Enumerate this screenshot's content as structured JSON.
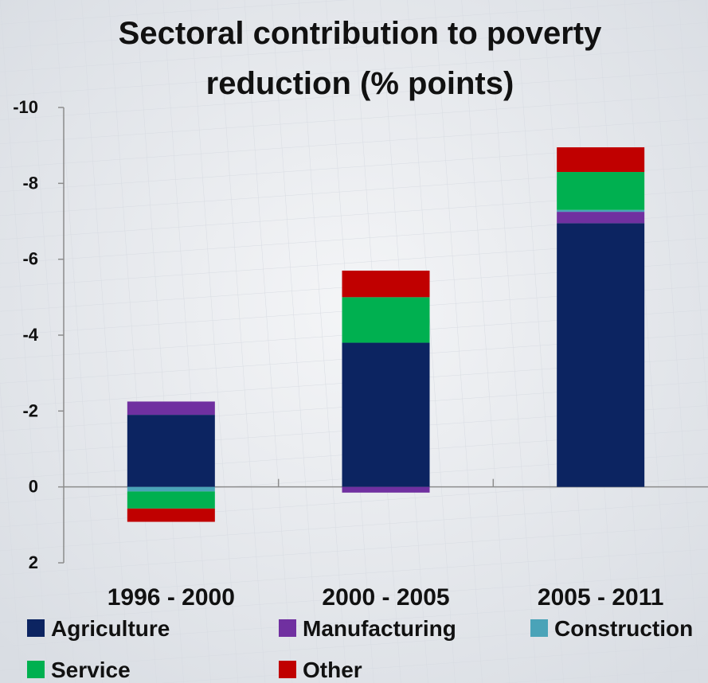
{
  "chart_data": {
    "type": "bar",
    "stacked": true,
    "title_lines": [
      "Sectoral contribution to poverty",
      "reduction (% points)"
    ],
    "categories": [
      "1996 - 2000",
      "2000 - 2005",
      "2005 - 2011"
    ],
    "series": [
      {
        "name": "Agriculture",
        "color": "#0c2461",
        "values": [
          -1.9,
          -3.8,
          -6.95
        ]
      },
      {
        "name": "Manufacturing",
        "color": "#7030a0",
        "values": [
          -0.35,
          0.15,
          -0.3
        ]
      },
      {
        "name": "Construction",
        "color": "#4aa3b8",
        "values": [
          0.12,
          0.0,
          -0.05
        ]
      },
      {
        "name": "Service",
        "color": "#00b050",
        "values": [
          0.45,
          -1.2,
          -1.0
        ]
      },
      {
        "name": "Other",
        "color": "#c00000",
        "values": [
          0.35,
          -0.7,
          -0.65
        ]
      }
    ],
    "y_axis": {
      "reversed": true,
      "range": [
        2,
        -10
      ],
      "ticks": [
        -10,
        -8,
        -6,
        -4,
        -2,
        0,
        2
      ],
      "tick_labels": [
        "-10",
        "-8",
        "-6",
        "-4",
        "-2",
        "0",
        "2"
      ]
    },
    "legend_placement": "bottom",
    "grid": false
  },
  "colors": {
    "background": "#e6e9ee",
    "axis": "#8c8c8c",
    "text": "#111111"
  }
}
